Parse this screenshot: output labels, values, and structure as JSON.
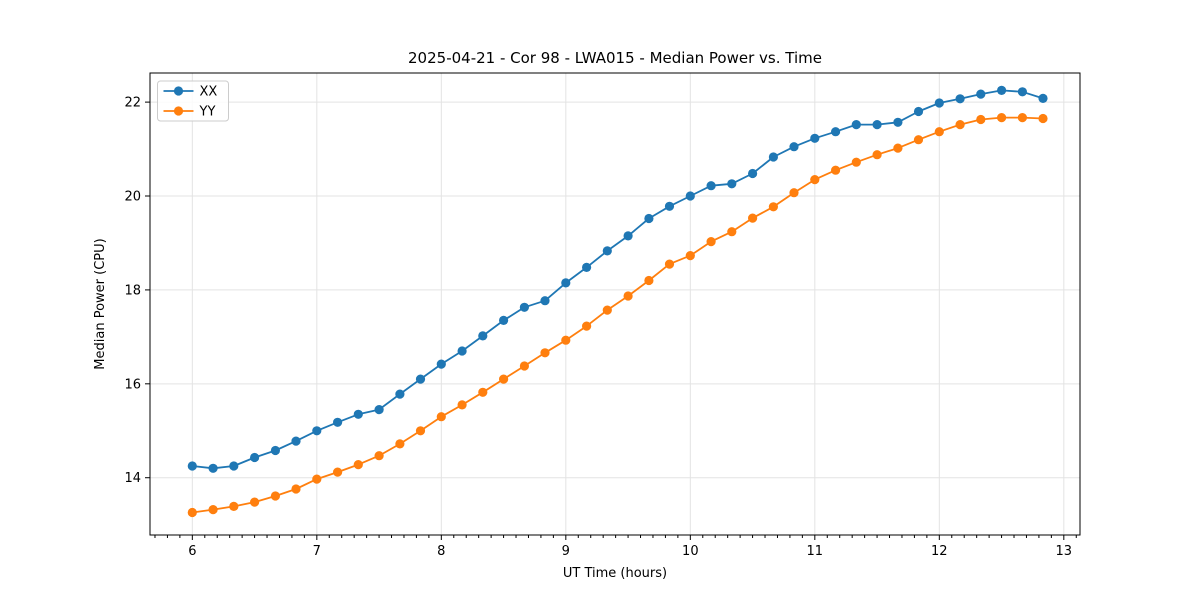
{
  "chart_data": {
    "type": "line",
    "title": "2025-04-21 - Cor 98 - LWA015 - Median Power vs. Time",
    "xlabel": "UT Time (hours)",
    "ylabel": "Median Power (CPU)",
    "xlim": [
      5.66,
      13.13
    ],
    "ylim": [
      12.78,
      22.62
    ],
    "x_major_ticks": [
      6,
      7,
      8,
      9,
      10,
      11,
      12,
      13
    ],
    "x_minor_tick_step": 0.1,
    "y_major_ticks": [
      14,
      16,
      18,
      20,
      22
    ],
    "grid": true,
    "legend_position": "upper-left",
    "x": [
      6.0,
      6.167,
      6.333,
      6.5,
      6.667,
      6.833,
      7.0,
      7.167,
      7.333,
      7.5,
      7.667,
      7.833,
      8.0,
      8.167,
      8.333,
      8.5,
      8.667,
      8.833,
      9.0,
      9.167,
      9.333,
      9.5,
      9.667,
      9.833,
      10.0,
      10.167,
      10.333,
      10.5,
      10.667,
      10.833,
      11.0,
      11.167,
      11.333,
      11.5,
      11.667,
      11.833,
      12.0,
      12.167,
      12.333,
      12.5,
      12.667,
      12.833
    ],
    "series": [
      {
        "name": "XX",
        "color": "#1f77b4",
        "values": [
          14.25,
          14.2,
          14.25,
          14.43,
          14.58,
          14.78,
          15.0,
          15.18,
          15.35,
          15.45,
          15.78,
          16.1,
          16.42,
          16.7,
          17.02,
          17.35,
          17.63,
          17.77,
          18.15,
          18.48,
          18.83,
          19.15,
          19.52,
          19.78,
          20.0,
          20.22,
          20.26,
          20.48,
          20.83,
          21.05,
          21.23,
          21.37,
          21.52,
          21.52,
          21.57,
          21.8,
          21.98,
          22.07,
          22.17,
          22.25,
          22.22,
          22.08
        ]
      },
      {
        "name": "YY",
        "color": "#ff7f0e",
        "values": [
          13.26,
          13.32,
          13.39,
          13.48,
          13.61,
          13.76,
          13.97,
          14.12,
          14.28,
          14.47,
          14.72,
          15.0,
          15.3,
          15.55,
          15.82,
          16.1,
          16.38,
          16.66,
          16.93,
          17.23,
          17.57,
          17.87,
          18.2,
          18.55,
          18.73,
          19.03,
          19.24,
          19.53,
          19.77,
          20.07,
          20.35,
          20.55,
          20.72,
          20.88,
          21.02,
          21.2,
          21.37,
          21.52,
          21.63,
          21.67,
          21.67,
          21.65
        ]
      }
    ],
    "colors": {
      "grid": "#e3e3e3",
      "spine": "#000000",
      "background": "#ffffff"
    }
  }
}
